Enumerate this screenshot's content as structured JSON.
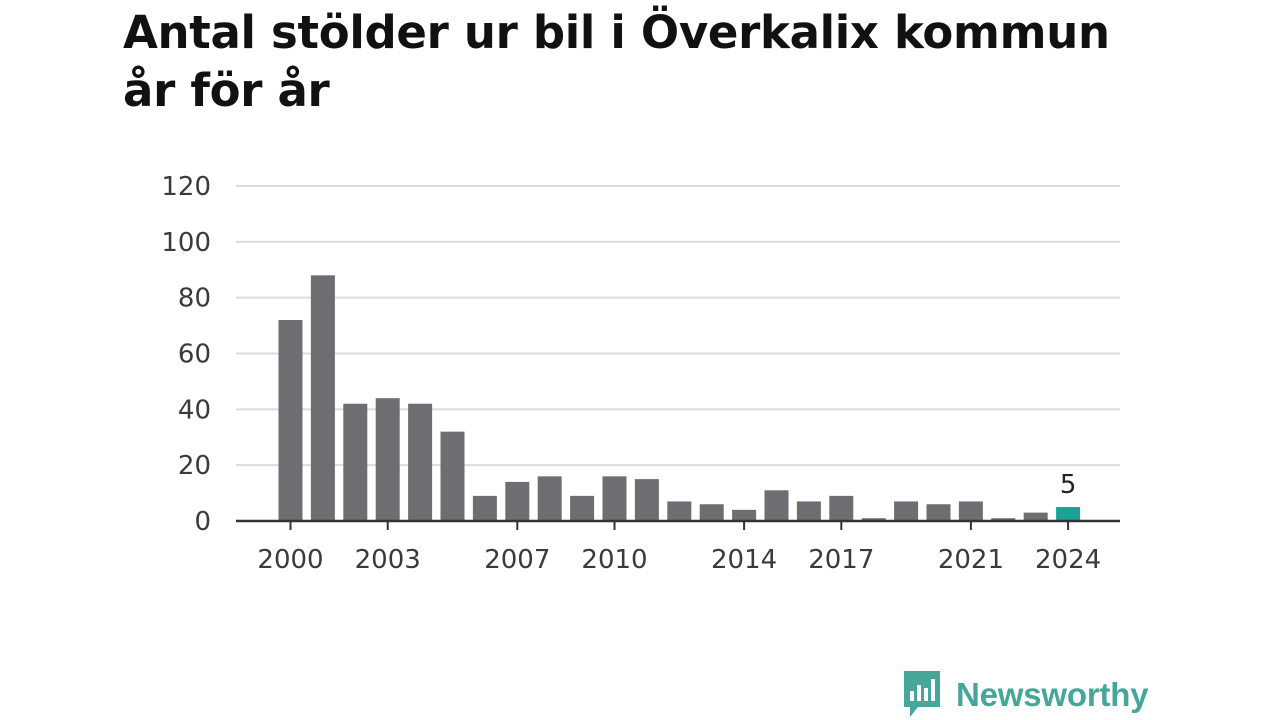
{
  "chart_data": {
    "type": "bar",
    "title_line1": "Antal stölder ur bil i Överkalix kommun",
    "title_line2": "år för år",
    "xlabel": "",
    "ylabel": "",
    "categories": [
      "2000",
      "2001",
      "2002",
      "2003",
      "2004",
      "2005",
      "2006",
      "2007",
      "2008",
      "2009",
      "2010",
      "2011",
      "2012",
      "2013",
      "2014",
      "2015",
      "2016",
      "2017",
      "2018",
      "2019",
      "2020",
      "2021",
      "2022",
      "2023",
      "2024"
    ],
    "values": [
      72,
      88,
      42,
      44,
      42,
      32,
      9,
      14,
      16,
      9,
      16,
      15,
      7,
      6,
      4,
      11,
      7,
      9,
      1,
      7,
      6,
      7,
      1,
      3,
      5
    ],
    "x_tick_labels": [
      "2000",
      "2003",
      "2007",
      "2010",
      "2014",
      "2017",
      "2021",
      "2024"
    ],
    "y_ticks": [
      0,
      20,
      40,
      60,
      80,
      100,
      120
    ],
    "ylim": [
      0,
      120
    ],
    "grid": true,
    "highlight_label": "5",
    "bar_color": "#6e6d72",
    "highlight_color": "#1aa394",
    "grid_color": "#dcdcdc",
    "axis_color": "#333333"
  },
  "brand": {
    "name": "Newsworthy",
    "icon": "newsworthy-logo-icon",
    "color": "#45a699"
  }
}
